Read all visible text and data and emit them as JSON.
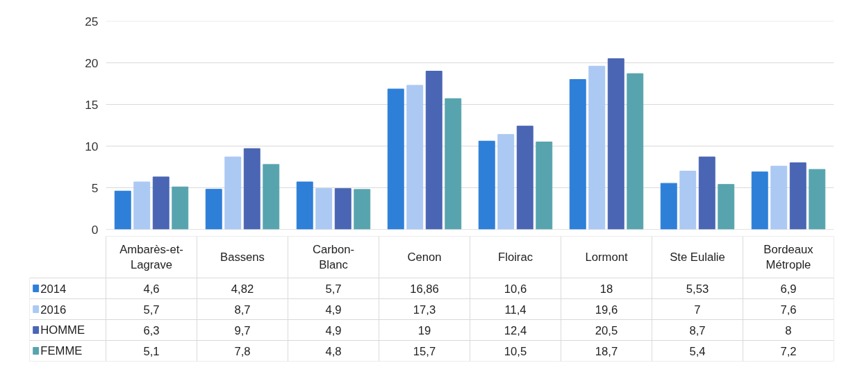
{
  "chart_data": {
    "type": "bar",
    "categories": [
      "Ambarès-et-\nLagrave",
      "Bassens",
      "Carbon-\nBlanc",
      "Cenon",
      "Floirac",
      "Lormont",
      "Ste Eulalie",
      "Bordeaux\nMétrople"
    ],
    "series": [
      {
        "name": "2014",
        "color": "#2e7fd8",
        "values": [
          4.6,
          4.82,
          5.7,
          16.86,
          10.6,
          18,
          5.53,
          6.9
        ],
        "value_labels": [
          "4,6",
          "4,82",
          "5,7",
          "16,86",
          "10,6",
          "18",
          "5,53",
          "6,9"
        ]
      },
      {
        "name": "2016",
        "color": "#abc9f3",
        "values": [
          5.7,
          8.7,
          4.9,
          17.3,
          11.4,
          19.6,
          7,
          7.6
        ],
        "value_labels": [
          "5,7",
          "8,7",
          "4,9",
          "17,3",
          "11,4",
          "19,6",
          "7",
          "7,6"
        ]
      },
      {
        "name": "HOMME",
        "color": "#4a65b3",
        "values": [
          6.3,
          9.7,
          4.9,
          19,
          12.4,
          20.5,
          8.7,
          8
        ],
        "value_labels": [
          "6,3",
          "9,7",
          "4,9",
          "19",
          "12,4",
          "20,5",
          "8,7",
          "8"
        ]
      },
      {
        "name": "FEMME",
        "color": "#58a4ae",
        "values": [
          5.1,
          7.8,
          4.8,
          15.7,
          10.5,
          18.7,
          5.4,
          7.2
        ],
        "value_labels": [
          "5,1",
          "7,8",
          "4,8",
          "15,7",
          "10,5",
          "18,7",
          "5,4",
          "7,2"
        ]
      }
    ],
    "ylim": [
      0,
      25
    ],
    "yticks": [
      0,
      5,
      10,
      15,
      20,
      25
    ],
    "grid": "y",
    "legend": "bottom"
  }
}
